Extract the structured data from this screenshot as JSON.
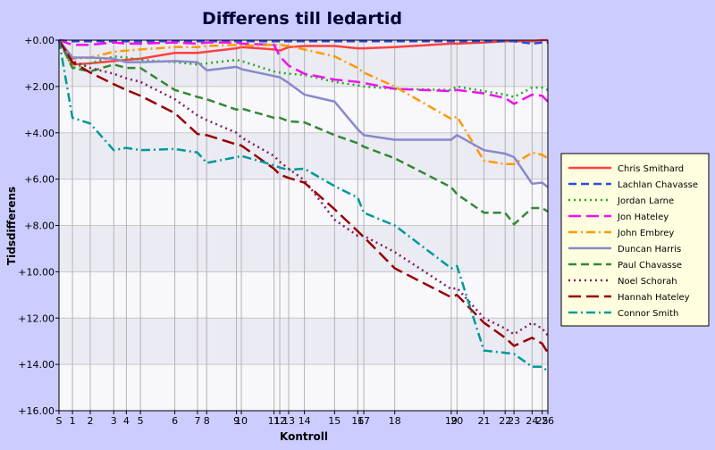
{
  "chart_data": {
    "type": "line",
    "title": "Differens till ledartid",
    "xlabel": "Kontroll",
    "ylabel": "Tidsdifferens",
    "ylim": [
      0,
      16
    ],
    "y_ticks": [
      0,
      2,
      4,
      6,
      8,
      10,
      12,
      14,
      16
    ],
    "y_tick_labels": [
      "+0.00",
      "+2.00",
      "+4.00",
      "+6.00",
      "+8.00",
      "+10.00",
      "+12.00",
      "+14.00",
      "+16.00"
    ],
    "x_tick_labels": [
      "S",
      "1",
      "2",
      "3",
      "4",
      "5",
      "6",
      "7",
      "8",
      "9",
      "10",
      "11",
      "12",
      "13",
      "14",
      "15",
      "16",
      "17",
      "18",
      "19",
      "20",
      "21",
      "22",
      "23",
      "24",
      "25",
      "26"
    ],
    "x": [
      0,
      4.7,
      10.9,
      19.1,
      23.5,
      28.4,
      40.4,
      48.3,
      51.5,
      61.9,
      63.6,
      75.0,
      77.0,
      80.1,
      85.6,
      96.1,
      104.2,
      106.3,
      117.1,
      136.8,
      138.8,
      148.2,
      155.6,
      158.7,
      165.0,
      168.5,
      170.5
    ],
    "grid": true,
    "legend_position": "right",
    "series": [
      {
        "name": "Chris Smithard",
        "color": "#ff4040",
        "dash": "solid",
        "values": [
          0,
          1.05,
          1.0,
          0.9,
          0.85,
          0.8,
          0.55,
          0.55,
          0.5,
          0.35,
          0.3,
          0.4,
          0.45,
          0.3,
          0.25,
          0.25,
          0.35,
          0.35,
          0.3,
          0.15,
          0.15,
          0.1,
          0.05,
          0.05,
          0.05,
          0.0,
          0.0
        ]
      },
      {
        "name": "Lachlan Chavasse",
        "color": "#2e4ae0",
        "dash": "dash",
        "values": [
          0,
          0.05,
          0.05,
          0.05,
          0.05,
          0.05,
          0.05,
          0.05,
          0.05,
          0.05,
          0.05,
          0.05,
          0.05,
          0.05,
          0.05,
          0.05,
          0.05,
          0.05,
          0.05,
          0.05,
          0.05,
          0.05,
          0.05,
          0.05,
          0.15,
          0.1,
          0.1
        ]
      },
      {
        "name": "Jordan Larne",
        "color": "#22aa22",
        "dash": "dot",
        "values": [
          0,
          1.2,
          1.0,
          0.7,
          0.75,
          0.85,
          0.95,
          1.05,
          1.0,
          0.85,
          0.9,
          1.35,
          1.4,
          1.45,
          1.5,
          1.8,
          1.95,
          2.0,
          2.1,
          2.15,
          2.0,
          2.2,
          2.35,
          2.45,
          2.05,
          2.05,
          2.15
        ]
      },
      {
        "name": "Jon Hateley",
        "color": "#ee11ee",
        "dash": "longdash",
        "values": [
          0,
          0.2,
          0.2,
          0.1,
          0.15,
          0.15,
          0.1,
          0.15,
          0.1,
          0.1,
          0.15,
          0.2,
          0.7,
          1.1,
          1.45,
          1.7,
          1.8,
          1.85,
          2.1,
          2.2,
          2.15,
          2.3,
          2.5,
          2.75,
          2.35,
          2.4,
          2.65
        ]
      },
      {
        "name": "John Embrey",
        "color": "#ff9900",
        "dash": "dashdot",
        "values": [
          0,
          0.8,
          0.75,
          0.5,
          0.45,
          0.4,
          0.3,
          0.3,
          0.25,
          0.2,
          0.25,
          0.2,
          0.2,
          0.25,
          0.4,
          0.7,
          1.2,
          1.4,
          2.0,
          3.4,
          3.3,
          5.2,
          5.35,
          5.35,
          4.85,
          4.95,
          5.1
        ]
      },
      {
        "name": "Duncan Harris",
        "color": "#8888cc",
        "dash": "solid",
        "values": [
          0,
          0.75,
          0.75,
          0.8,
          0.95,
          0.95,
          0.9,
          0.95,
          1.3,
          1.15,
          1.25,
          1.55,
          1.6,
          1.85,
          2.35,
          2.65,
          3.85,
          4.1,
          4.3,
          4.3,
          4.1,
          4.75,
          4.9,
          5.05,
          6.2,
          6.15,
          6.35
        ]
      },
      {
        "name": "Paul Chavasse",
        "color": "#338833",
        "dash": "dash",
        "values": [
          0,
          1.2,
          1.35,
          1.05,
          1.2,
          1.2,
          2.15,
          2.45,
          2.55,
          3.0,
          2.95,
          3.35,
          3.35,
          3.5,
          3.55,
          4.1,
          4.45,
          4.6,
          5.1,
          6.35,
          6.65,
          7.45,
          7.45,
          7.95,
          7.25,
          7.25,
          7.4
        ]
      },
      {
        "name": "Noel Schorah",
        "color": "#802060",
        "dash": "dot",
        "values": [
          0,
          0.9,
          1.2,
          1.45,
          1.65,
          1.8,
          2.55,
          3.25,
          3.45,
          4.0,
          4.2,
          5.0,
          5.25,
          5.55,
          6.05,
          7.75,
          8.45,
          8.45,
          9.15,
          10.75,
          10.7,
          12.0,
          12.45,
          12.7,
          12.2,
          12.45,
          12.75
        ]
      },
      {
        "name": "Hannah Hateley",
        "color": "#990000",
        "dash": "longdash",
        "values": [
          0,
          0.95,
          1.4,
          1.9,
          2.15,
          2.4,
          3.15,
          4.05,
          4.1,
          4.5,
          4.55,
          5.55,
          5.8,
          5.95,
          6.15,
          7.3,
          8.25,
          8.5,
          9.85,
          11.1,
          11.0,
          12.2,
          12.85,
          13.2,
          12.85,
          13.1,
          13.5
        ]
      },
      {
        "name": "Connor Smith",
        "color": "#009999",
        "dash": "dashdot",
        "values": [
          0,
          3.35,
          3.6,
          4.75,
          4.65,
          4.75,
          4.7,
          4.85,
          5.3,
          5.05,
          5.0,
          5.4,
          5.5,
          5.6,
          5.55,
          6.3,
          6.8,
          7.45,
          8.0,
          9.85,
          9.75,
          13.4,
          13.5,
          13.55,
          14.1,
          14.1,
          14.3
        ]
      }
    ]
  }
}
